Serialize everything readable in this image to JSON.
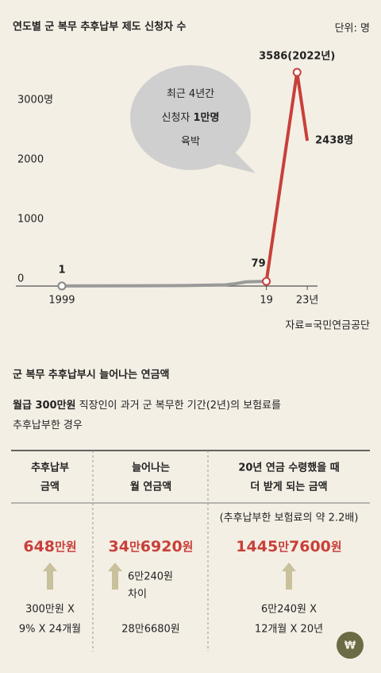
{
  "chart_data": {
    "type": "line",
    "title": "연도별 군 복무 추후납부 제도 신청자 수",
    "unit_label": "단위: 명",
    "x": [
      1999,
      2003,
      2007,
      2011,
      2015,
      2016,
      2017,
      2018,
      2019,
      2022,
      2023
    ],
    "values": [
      1,
      3,
      5,
      8,
      20,
      40,
      70,
      75,
      79,
      3586,
      2438
    ],
    "value_labels": [
      "1",
      null,
      null,
      null,
      null,
      null,
      null,
      null,
      "79",
      "3586(2022년)",
      "2438명"
    ],
    "color": "#9a9a9a",
    "highlight_color": "#c8403a",
    "highlight_from": 2019,
    "xlim": [
      1994.5,
      2024
    ],
    "xticks": [
      1999,
      {
        "value": 2019,
        "label": "19"
      },
      {
        "value": 2023,
        "label": "23년"
      }
    ],
    "ylim": [
      0,
      3800
    ],
    "yticks": [
      0,
      1000,
      2000,
      {
        "value": 3000,
        "label": "3000명"
      }
    ],
    "grid": false,
    "annotation": [
      [
        "최근 4년간"
      ],
      [
        "신청자 ",
        "1만명"
      ],
      [
        "육박"
      ]
    ],
    "source": "자료=국민연금공단"
  },
  "section": {
    "title": "군 복무 추후납부시 늘어나는 연금액",
    "subtitle": [
      [
        "월급 300만원",
        " 직장인이 과거 군 복무한 기간(2년)의 보험료를"
      ],
      [
        "추후납부한 경우"
      ]
    ]
  },
  "table": {
    "columns": [
      {
        "header": [
          "추후납부",
          "금액"
        ],
        "value": [
          "648",
          "만원"
        ],
        "detail": [
          "300만원 X",
          "9% X 24개월"
        ]
      },
      {
        "header": [
          "늘어나는",
          "월 연금액"
        ],
        "value": [
          "34",
          "만",
          "6920",
          "원"
        ],
        "arrow_note": [
          "6만240원",
          "차이"
        ],
        "detail": [
          "28만6680원"
        ]
      },
      {
        "header": [
          "20년 연금 수령했을 때",
          "더 받게 되는 금액"
        ],
        "note": "(추후납부한 보험료의 약 2.2배)",
        "value": [
          "1445",
          "만",
          "7600",
          "원"
        ],
        "detail": [
          "6만240원 X",
          "12개월 X 20년"
        ]
      }
    ]
  },
  "logo": "₩"
}
